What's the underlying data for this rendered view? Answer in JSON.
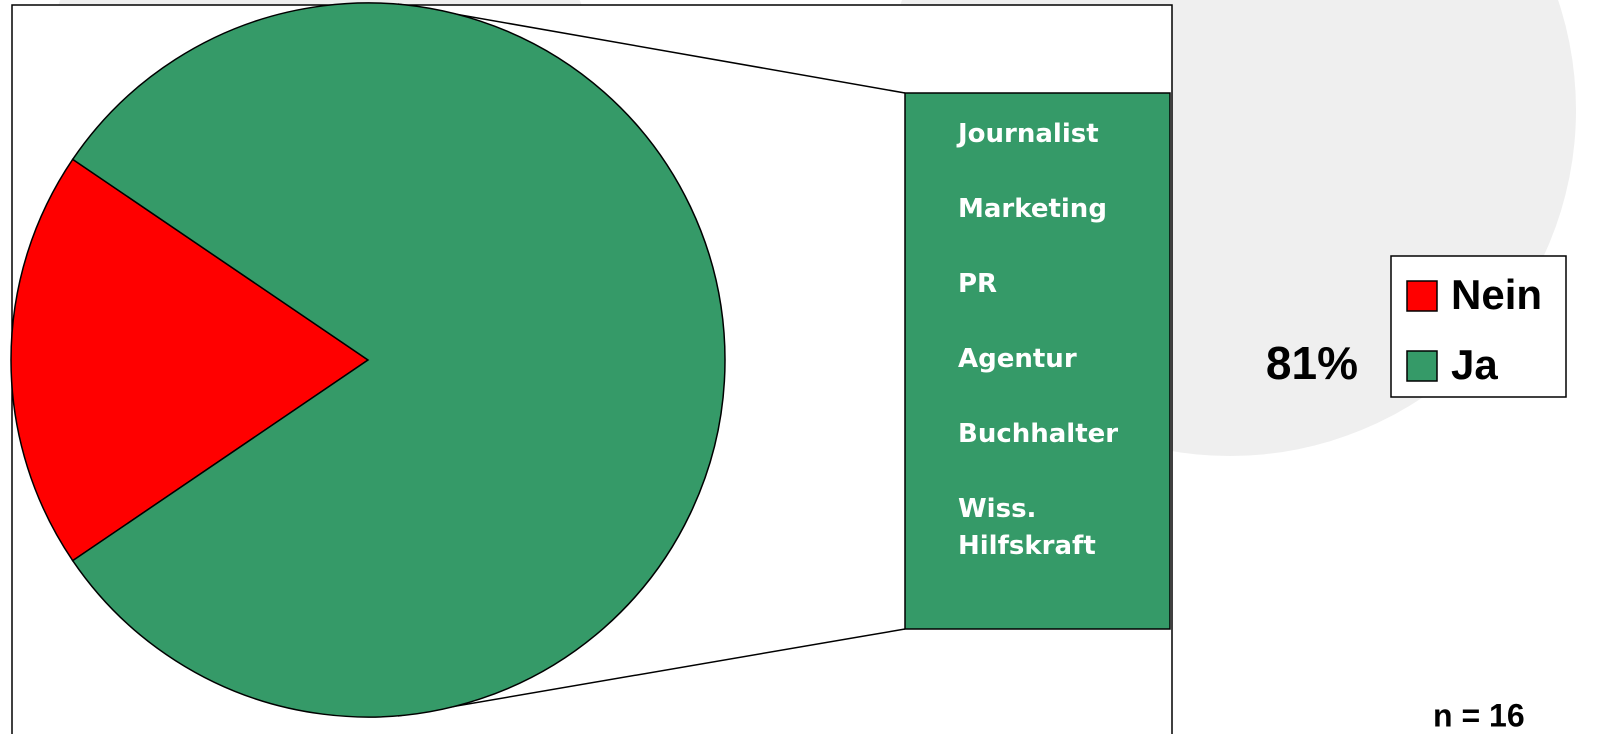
{
  "chart_data": {
    "type": "pie",
    "series": [
      {
        "name": "Nein",
        "color": "#ff0000"
      },
      {
        "name": "Ja",
        "color": "#359a68"
      }
    ],
    "values": [
      19,
      81
    ],
    "value_labels": [
      null,
      "81%"
    ],
    "breakdown_items": [
      "Journalist",
      "Marketing",
      "PR",
      "Agentur",
      "Buchhalter",
      "Wiss. Hilfskraft"
    ],
    "note": "n = 16"
  }
}
